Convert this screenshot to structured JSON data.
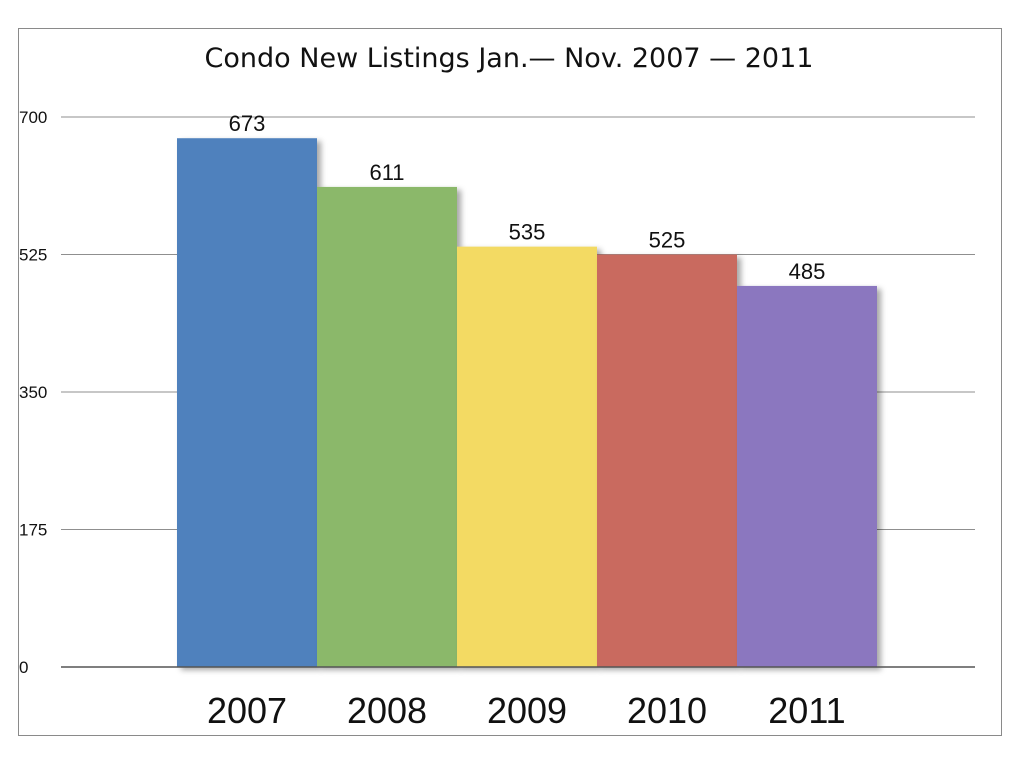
{
  "chart_data": {
    "type": "bar",
    "title": "Condo New Listings Jan.— Nov. 2007 — 2011",
    "categories": [
      "2007",
      "2008",
      "2009",
      "2010",
      "2011"
    ],
    "values": [
      673,
      611,
      535,
      525,
      485
    ],
    "data_labels": [
      "673",
      "611",
      "535",
      "525",
      "485"
    ],
    "colors": [
      "#4f81bd",
      "#8bb86a",
      "#f3da63",
      "#c96b5f",
      "#8b77bf"
    ],
    "xlabel": "",
    "ylabel": "",
    "ylim": [
      0,
      700
    ],
    "yticks": [
      0,
      175,
      350,
      525,
      700
    ],
    "ytick_labels": [
      "0",
      "175",
      "350",
      "525",
      "700"
    ],
    "grid": true,
    "legend": "none"
  }
}
